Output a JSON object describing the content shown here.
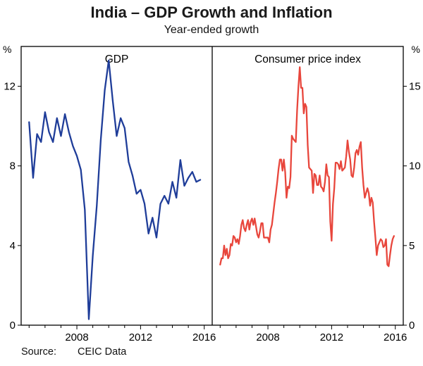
{
  "footer": {
    "label": "Source:",
    "value": "CEIC Data"
  },
  "chart_data": {
    "type": "line",
    "title": "India – GDP Growth and Inflation",
    "subtitle": "Year-ended growth",
    "y_axis_unit": "%",
    "grid": "off",
    "x_range": [
      2004.5,
      2016.5
    ],
    "x_ticks": [
      2008,
      2012,
      2016
    ],
    "panels": [
      {
        "name": "gdp",
        "label": "GDP",
        "color": "#1f3d99",
        "axis": "left",
        "y_range": [
          0,
          14
        ],
        "y_ticks": [
          0,
          4,
          8,
          12
        ],
        "x_start": 2005.0,
        "x_step": 0.25,
        "values": [
          10.2,
          7.4,
          9.6,
          9.2,
          10.7,
          9.7,
          9.2,
          10.4,
          9.5,
          10.6,
          9.7,
          9.0,
          8.5,
          7.8,
          5.8,
          0.3,
          3.5,
          6.0,
          9.3,
          11.8,
          13.3,
          11.3,
          9.5,
          10.4,
          9.9,
          8.2,
          7.5,
          6.6,
          6.8,
          6.1,
          4.6,
          5.4,
          4.4,
          6.1,
          6.5,
          6.1,
          7.2,
          6.4,
          8.3,
          7.0,
          7.4,
          7.7,
          7.2,
          7.3
        ]
      },
      {
        "name": "cpi",
        "label": "Consumer price index",
        "color": "#e8463c",
        "axis": "right",
        "y_range": [
          0,
          17.5
        ],
        "y_ticks": [
          0,
          5,
          10,
          15
        ],
        "x_start": 2005.0,
        "x_step": 0.0833333,
        "values": [
          3.8,
          4.2,
          4.2,
          5.0,
          4.4,
          4.8,
          4.2,
          4.4,
          5.1,
          5.0,
          5.6,
          5.5,
          5.2,
          5.4,
          5.1,
          5.6,
          6.3,
          6.6,
          6.1,
          5.9,
          6.3,
          6.6,
          6.0,
          6.5,
          6.7,
          6.3,
          6.7,
          6.2,
          5.7,
          5.5,
          5.9,
          6.4,
          6.4,
          5.5,
          5.5,
          5.5,
          5.5,
          5.2,
          6.0,
          6.3,
          7.0,
          7.7,
          8.3,
          9.0,
          9.8,
          10.4,
          10.4,
          9.7,
          10.4,
          9.6,
          8.0,
          8.7,
          8.6,
          9.3,
          11.9,
          11.7,
          11.6,
          11.5,
          13.5,
          15.0,
          16.2,
          14.9,
          14.9,
          13.3,
          13.9,
          13.7,
          11.3,
          9.9,
          9.8,
          9.7,
          8.3,
          9.5,
          9.4,
          8.8,
          8.8,
          9.4,
          8.7,
          8.6,
          8.4,
          9.0,
          10.1,
          9.4,
          9.3,
          6.5,
          5.3,
          7.6,
          8.6,
          10.2,
          10.2,
          10.1,
          9.8,
          10.3,
          9.7,
          9.8,
          9.9,
          10.6,
          11.6,
          10.9,
          10.4,
          9.4,
          9.3,
          9.9,
          10.8,
          11.0,
          10.7,
          11.2,
          11.5,
          9.9,
          8.8,
          8.0,
          8.3,
          8.6,
          8.3,
          7.5,
          8.0,
          7.7,
          6.5,
          5.5,
          4.4,
          5.0,
          5.2,
          5.4,
          5.3,
          4.9,
          5.0,
          5.4,
          3.8,
          3.7,
          4.4,
          5.0,
          5.4,
          5.6
        ]
      }
    ],
    "source": "Source: CEIC Data"
  }
}
